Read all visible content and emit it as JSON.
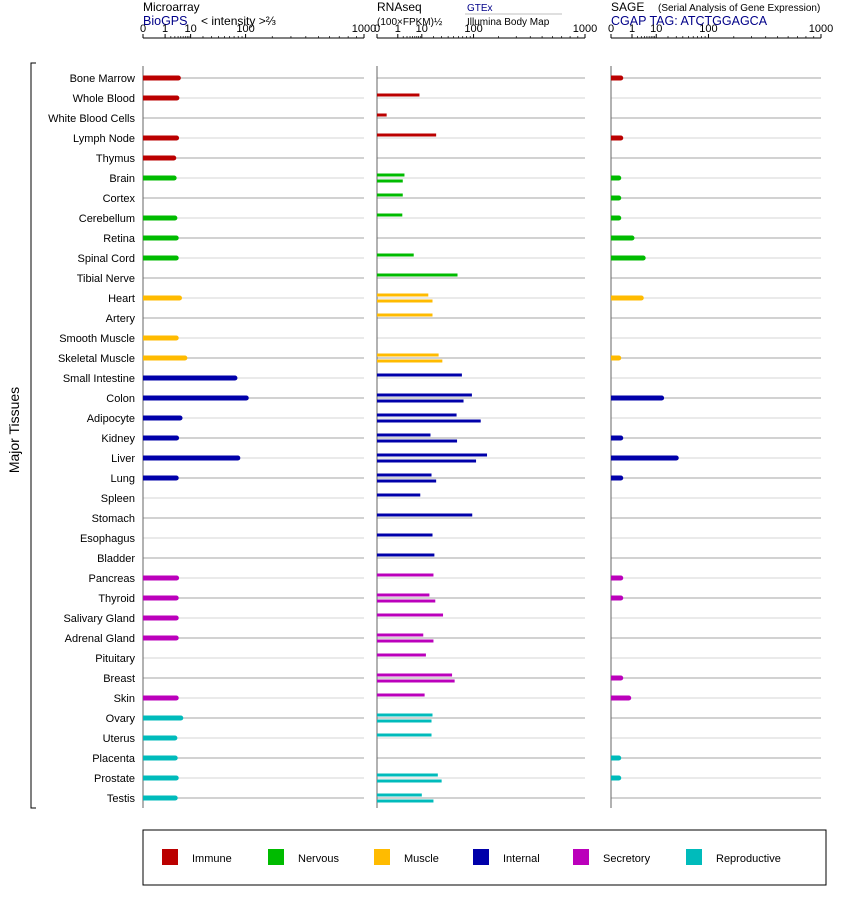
{
  "axis_label": "Major Tissues",
  "panels": {
    "microarray": {
      "title": "Microarray",
      "subtitle": "BioGPS",
      "scale_note": "< intensity >⅔"
    },
    "rnaseq": {
      "title": "RNAseq",
      "scale_note": "(100×FPKM)½",
      "source_1": "GTEx",
      "source_2": "Illumina Body Map"
    },
    "sage": {
      "title": "SAGE",
      "title_note": "(Serial Analysis of Gene Expression)",
      "subtitle": "CGAP TAG: ATCTGGAGCA"
    }
  },
  "tick_labels": [
    "0",
    "1",
    "10",
    "100",
    "1000"
  ],
  "colors": {
    "Immune": "#bb0000",
    "Nervous": "#00bb00",
    "Muscle": "#ffbb00",
    "Internal": "#0000aa",
    "Secretory": "#bb00bb",
    "Reproductive": "#00bbbb"
  },
  "chart_data": {
    "type": "bar",
    "x_scale": "power",
    "x_ticks": [
      0,
      1,
      10,
      100,
      1000
    ],
    "xlim": [
      0,
      1000
    ],
    "legend": [
      "Immune",
      "Nervous",
      "Muscle",
      "Internal",
      "Secretory",
      "Reproductive"
    ],
    "legend_position": "bottom",
    "tissues": [
      {
        "name": "Bone Marrow",
        "group": "Immune",
        "microarray": 4.1,
        "rnaseq": [],
        "sage": 0.1
      },
      {
        "name": "Whole Blood",
        "group": "Immune",
        "microarray": 3.6,
        "rnaseq": [
          8.5
        ],
        "sage": null
      },
      {
        "name": "White Blood Cells",
        "group": "Immune",
        "microarray": null,
        "rnaseq": [
          0.1
        ],
        "sage": null
      },
      {
        "name": "Lymph Node",
        "group": "Immune",
        "microarray": 3.5,
        "rnaseq": [
          23
        ],
        "sage": 0.1
      },
      {
        "name": "Thymus",
        "group": "Immune",
        "microarray": 2.7,
        "rnaseq": [],
        "sage": null
      },
      {
        "name": "Brain",
        "group": "Nervous",
        "microarray": 2.8,
        "rnaseq": [
          2.3,
          1.9
        ],
        "sage": 0.05
      },
      {
        "name": "Cortex",
        "group": "Nervous",
        "microarray": null,
        "rnaseq": [
          1.9
        ],
        "sage": 0.05
      },
      {
        "name": "Cerebellum",
        "group": "Nervous",
        "microarray": 3.0,
        "rnaseq": [
          1.8
        ],
        "sage": 0.05
      },
      {
        "name": "Retina",
        "group": "Nervous",
        "microarray": 3.4,
        "rnaseq": [],
        "sage": 1.0
      },
      {
        "name": "Spinal Cord",
        "group": "Nervous",
        "microarray": 3.4,
        "rnaseq": [
          5.5
        ],
        "sage": 3.6
      },
      {
        "name": "Tibial Nerve",
        "group": "Nervous",
        "microarray": null,
        "rnaseq": [
          58
        ],
        "sage": null
      },
      {
        "name": "Heart",
        "group": "Muscle",
        "microarray": 4.5,
        "rnaseq": [
          15,
          19
        ],
        "sage": 3.0
      },
      {
        "name": "Artery",
        "group": "Muscle",
        "microarray": null,
        "rnaseq": [
          19
        ],
        "sage": null
      },
      {
        "name": "Smooth Muscle",
        "group": "Muscle",
        "microarray": 3.4,
        "rnaseq": [],
        "sage": null
      },
      {
        "name": "Skeletal Muscle",
        "group": "Muscle",
        "microarray": 6.8,
        "rnaseq": [
          26,
          31
        ],
        "sage": 0.05
      },
      {
        "name": "Small Intestine",
        "group": "Internal",
        "microarray": 72,
        "rnaseq": [
          68
        ],
        "sage": null
      },
      {
        "name": "Colon",
        "group": "Internal",
        "microarray": 102,
        "rnaseq": [
          95,
          72
        ],
        "sage": 14
      },
      {
        "name": "Adipocyte",
        "group": "Internal",
        "microarray": 4.7,
        "rnaseq": [
          56,
          124
        ],
        "sage": null
      },
      {
        "name": "Kidney",
        "group": "Internal",
        "microarray": 3.5,
        "rnaseq": [
          17,
          57
        ],
        "sage": 0.1
      },
      {
        "name": "Liver",
        "group": "Internal",
        "microarray": 79,
        "rnaseq": [
          148,
          108
        ],
        "sage": 30
      },
      {
        "name": "Lung",
        "group": "Internal",
        "microarray": 3.4,
        "rnaseq": [
          18,
          23
        ],
        "sage": 0.1
      },
      {
        "name": "Spleen",
        "group": "Internal",
        "microarray": null,
        "rnaseq": [
          9
        ],
        "sage": null
      },
      {
        "name": "Stomach",
        "group": "Internal",
        "microarray": null,
        "rnaseq": [
          96
        ],
        "sage": null
      },
      {
        "name": "Esophagus",
        "group": "Internal",
        "microarray": null,
        "rnaseq": [
          19
        ],
        "sage": null
      },
      {
        "name": "Bladder",
        "group": "Internal",
        "microarray": null,
        "rnaseq": [
          21
        ],
        "sage": null
      },
      {
        "name": "Pancreas",
        "group": "Secretory",
        "microarray": 3.5,
        "rnaseq": [
          20
        ],
        "sage": 0.1
      },
      {
        "name": "Thyroid",
        "group": "Secretory",
        "microarray": 3.4,
        "rnaseq": [
          16,
          22
        ],
        "sage": 0.1
      },
      {
        "name": "Salivary Gland",
        "group": "Secretory",
        "microarray": 3.4,
        "rnaseq": [
          32
        ],
        "sage": null
      },
      {
        "name": "Adrenal Gland",
        "group": "Secretory",
        "microarray": 3.4,
        "rnaseq": [
          11,
          20
        ],
        "sage": null
      },
      {
        "name": "Pituitary",
        "group": "Secretory",
        "microarray": null,
        "rnaseq": [
          13
        ],
        "sage": null
      },
      {
        "name": "Breast",
        "group": "Secretory",
        "microarray": null,
        "rnaseq": [
          47,
          52
        ],
        "sage": 0.1
      },
      {
        "name": "Skin",
        "group": "Secretory",
        "microarray": 3.4,
        "rnaseq": [
          12
        ],
        "sage": 0.6
      },
      {
        "name": "Ovary",
        "group": "Reproductive",
        "microarray": 5.0,
        "rnaseq": [
          19,
          18
        ],
        "sage": null
      },
      {
        "name": "Uterus",
        "group": "Reproductive",
        "microarray": 3.0,
        "rnaseq": [
          18
        ],
        "sage": null
      },
      {
        "name": "Placenta",
        "group": "Reproductive",
        "microarray": 3.1,
        "rnaseq": [],
        "sage": 0.05
      },
      {
        "name": "Prostate",
        "group": "Reproductive",
        "microarray": 3.4,
        "rnaseq": [
          25,
          30
        ],
        "sage": 0.05
      },
      {
        "name": "Testis",
        "group": "Reproductive",
        "microarray": 3.1,
        "rnaseq": [
          10,
          20
        ],
        "sage": null
      }
    ]
  }
}
